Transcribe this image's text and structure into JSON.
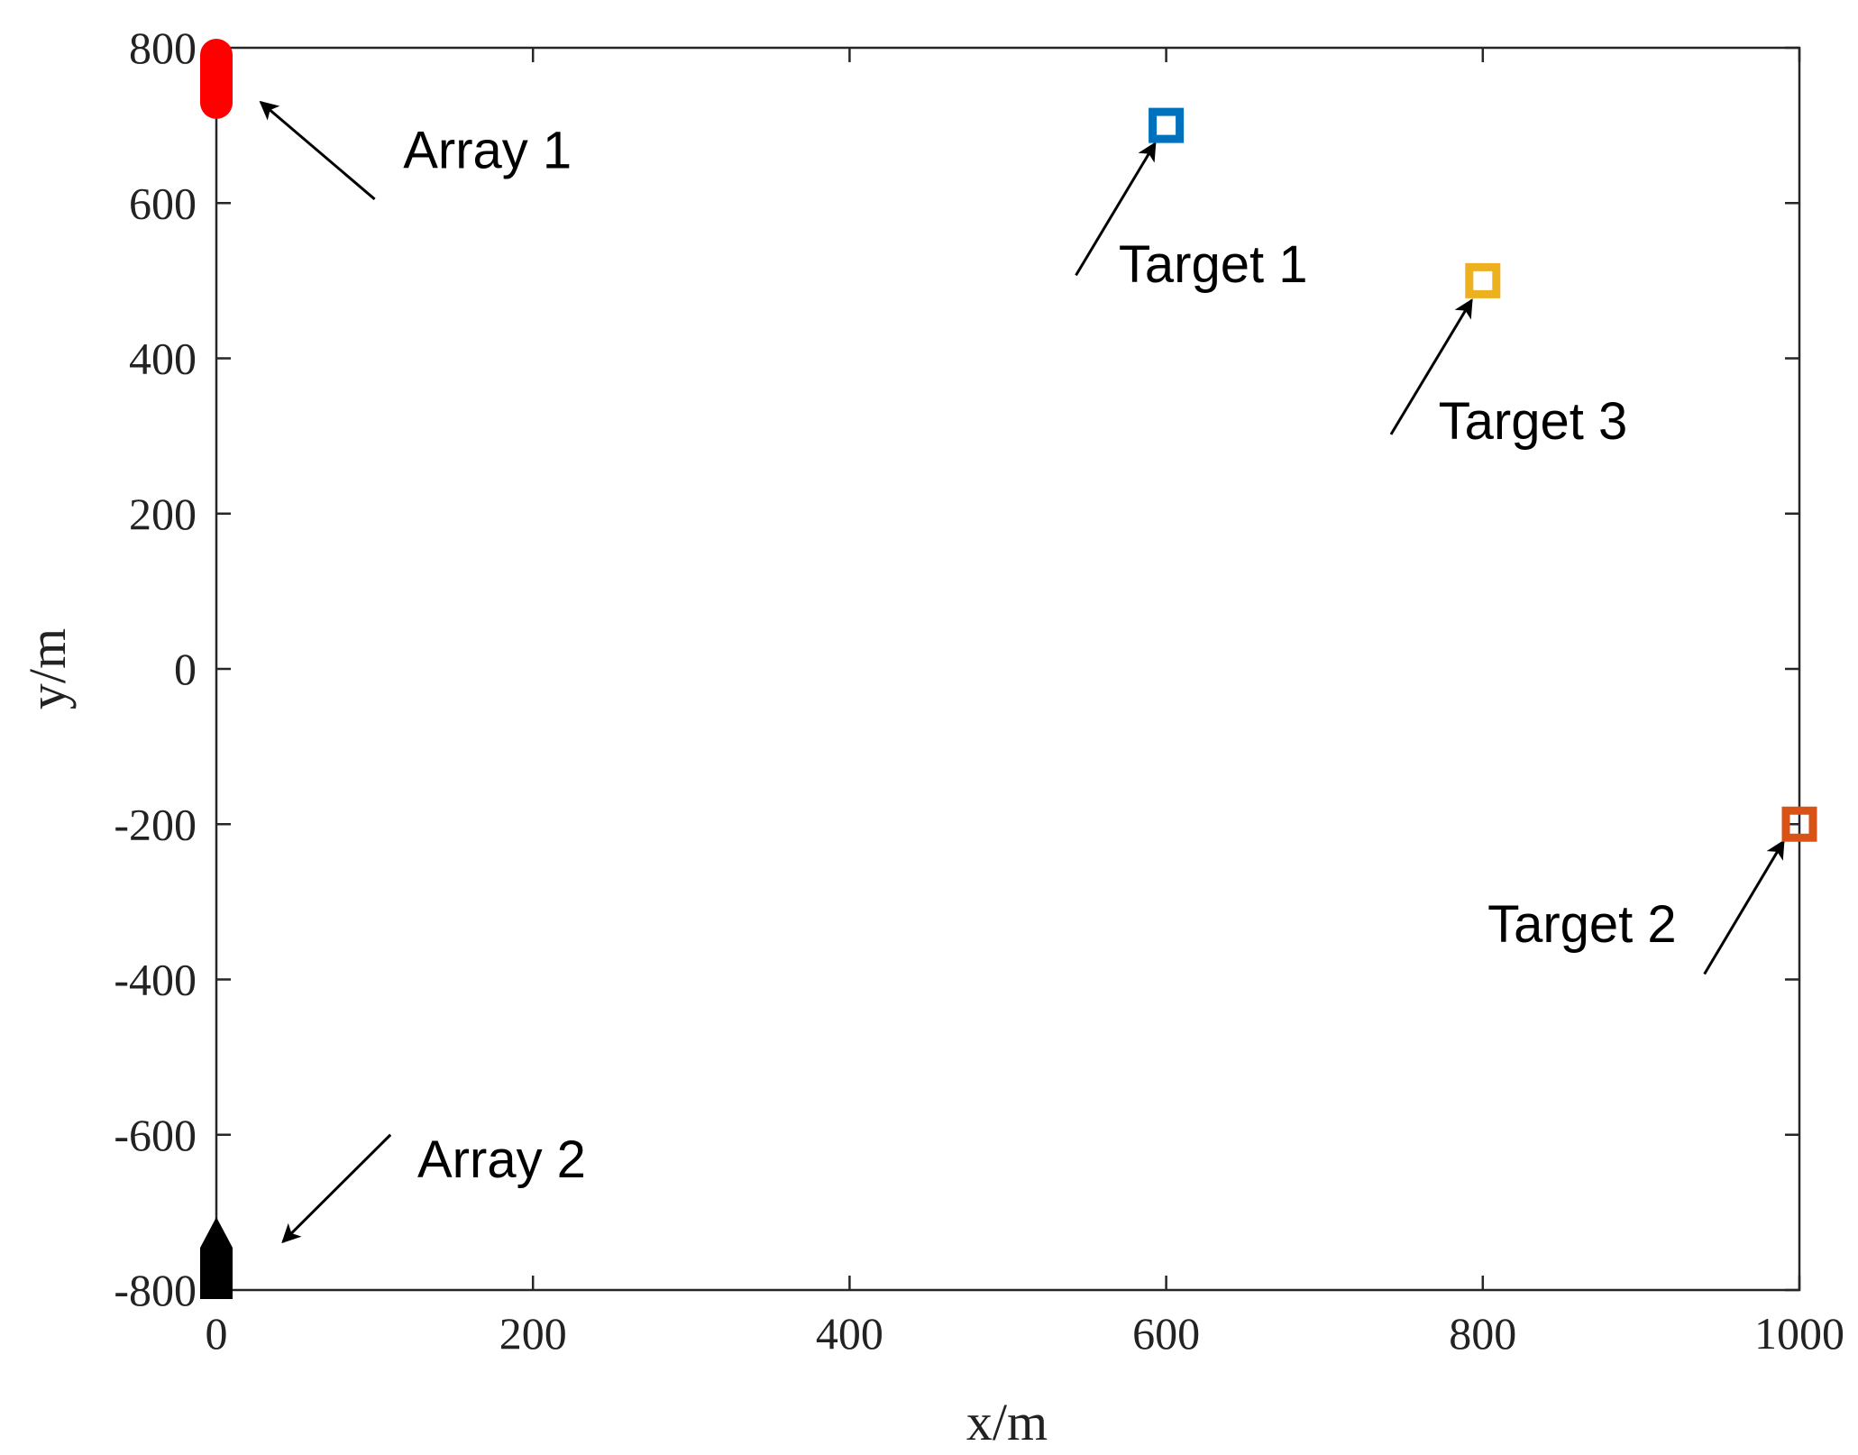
{
  "chart_data": {
    "type": "scatter",
    "title": "",
    "xlabel": "x/m",
    "ylabel": "y/m",
    "xlim": [
      0,
      1000
    ],
    "ylim": [
      -800,
      800
    ],
    "x_ticks": [
      0,
      200,
      400,
      600,
      800,
      1000
    ],
    "y_ticks": [
      800,
      600,
      400,
      200,
      0,
      -200,
      -400,
      -600,
      -800
    ],
    "grid": false,
    "arrays": [
      {
        "label": "Array 1",
        "x": 0,
        "y_from": 720,
        "y_to": 800,
        "color": "#ff0000",
        "marker": "filled-circle"
      },
      {
        "label": "Array 2",
        "x": 0,
        "y_from": -800,
        "y_to": -720,
        "color": "#000000",
        "marker": "filled-triangle"
      }
    ],
    "targets": [
      {
        "label": "Target 1",
        "x": 600,
        "y": 700,
        "color": "#0072bd",
        "marker": "square"
      },
      {
        "label": "Target 2",
        "x": 1000,
        "y": -200,
        "color": "#d95319",
        "marker": "square"
      },
      {
        "label": "Target 3",
        "x": 800,
        "y": 500,
        "color": "#edb120",
        "marker": "square"
      }
    ],
    "annotations": [
      {
        "text": "Array 1",
        "text_x": 118,
        "text_y": 645,
        "tail_x": 100,
        "tail_y": 605,
        "head_x": 28,
        "head_y": 730
      },
      {
        "text": "Target 1",
        "text_x": 570,
        "text_y": 498,
        "tail_x": 543,
        "tail_y": 507,
        "head_x": 593,
        "head_y": 677
      },
      {
        "text": "Target 3",
        "text_x": 772,
        "text_y": 296,
        "tail_x": 742,
        "tail_y": 302,
        "head_x": 793,
        "head_y": 475
      },
      {
        "text": "Target 2",
        "text_x": 803,
        "text_y": -352,
        "tail_x": 940,
        "tail_y": -393,
        "head_x": 990,
        "head_y": -222
      },
      {
        "text": "Array 2",
        "text_x": 127,
        "text_y": -655,
        "tail_x": 110,
        "tail_y": -600,
        "head_x": 42,
        "head_y": -738
      }
    ]
  }
}
